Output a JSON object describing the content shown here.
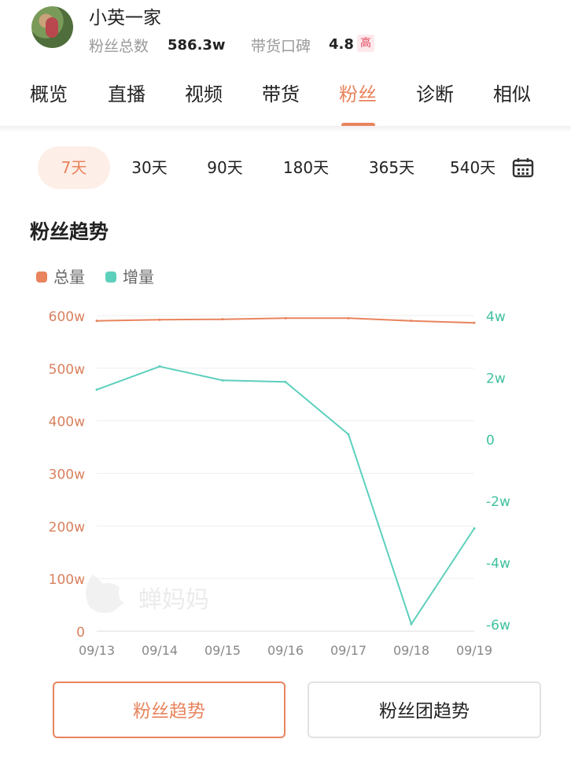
{
  "profile": {
    "name": "小英一家",
    "fans_label": "粉丝总数",
    "fans_value": "586.3w",
    "reputation_label": "带货口碑",
    "reputation_value": "4.8",
    "reputation_badge": "高"
  },
  "tabs": [
    {
      "label": "概览"
    },
    {
      "label": "直播"
    },
    {
      "label": "视频"
    },
    {
      "label": "带货"
    },
    {
      "label": "粉丝",
      "active": true
    },
    {
      "label": "诊断"
    },
    {
      "label": "相似"
    }
  ],
  "periods": [
    {
      "label": "7天",
      "active": true
    },
    {
      "label": "30天"
    },
    {
      "label": "90天"
    },
    {
      "label": "180天"
    },
    {
      "label": "365天"
    },
    {
      "label": "540天"
    }
  ],
  "section_title": "粉丝趋势",
  "legend": {
    "total": "总量",
    "increment": "增量"
  },
  "watermark": "蝉妈妈",
  "colors": {
    "accent": "#e8845e",
    "teal": "#5dcfbd",
    "left_axis": "#d9805e",
    "right_axis": "#3fc19f"
  },
  "chart_data": {
    "type": "line",
    "x": [
      "09/13",
      "09/14",
      "09/15",
      "09/16",
      "09/17",
      "09/18",
      "09/19"
    ],
    "left_axis": {
      "ticks": [
        "0",
        "100w",
        "200w",
        "300w",
        "400w",
        "500w",
        "600w"
      ],
      "min": 0,
      "max": 600,
      "unit": "w"
    },
    "right_axis": {
      "ticks": [
        "-6w",
        "-4w",
        "-2w",
        "0",
        "2w",
        "4w"
      ],
      "min": -6,
      "max": 4,
      "unit": "w"
    },
    "series": [
      {
        "name": "总量",
        "axis": "left",
        "color": "#e8845e",
        "values": [
          590,
          592,
          593,
          595,
          595,
          590,
          586.3
        ]
      },
      {
        "name": "增量",
        "axis": "right",
        "color": "#5dcfbd",
        "values": [
          1.6,
          2.35,
          1.9,
          1.85,
          0.15,
          -6.0,
          -2.9
        ]
      }
    ],
    "grid": true,
    "legend_position": "top-left"
  },
  "buttons": {
    "fans_trend": "粉丝趋势",
    "fan_group_trend": "粉丝团趋势"
  }
}
